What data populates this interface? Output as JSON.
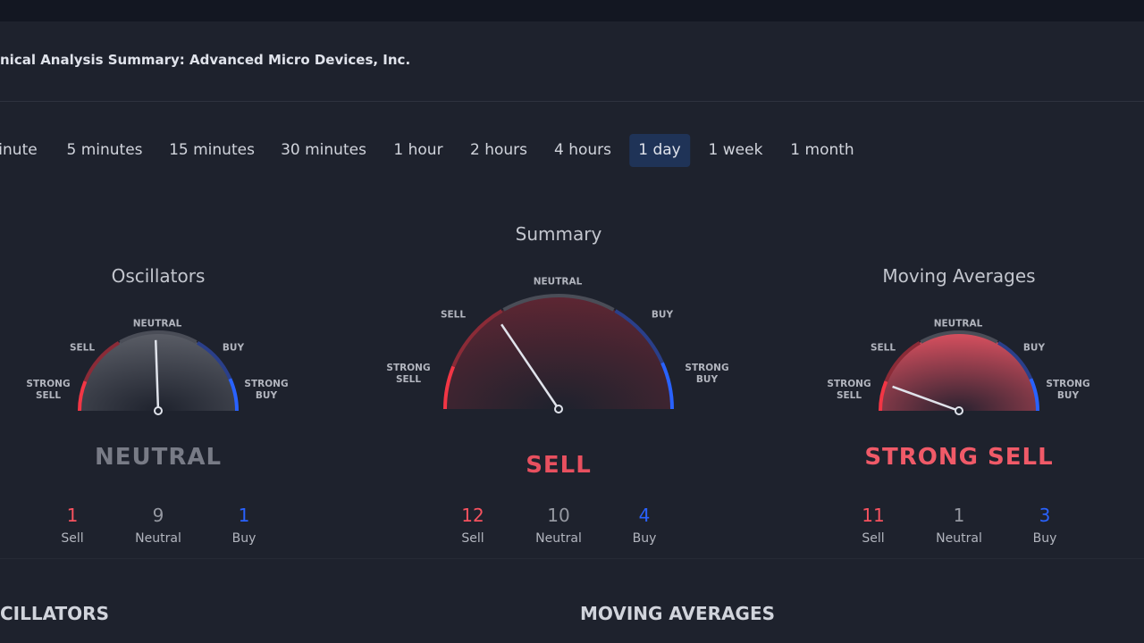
{
  "header": {
    "title": "nical Analysis Summary: Advanced Micro Devices, Inc."
  },
  "timeframes": [
    {
      "label": "inute",
      "active": false
    },
    {
      "label": "5 minutes",
      "active": false
    },
    {
      "label": "15 minutes",
      "active": false
    },
    {
      "label": "30 minutes",
      "active": false
    },
    {
      "label": "1 hour",
      "active": false
    },
    {
      "label": "2 hours",
      "active": false
    },
    {
      "label": "4 hours",
      "active": false
    },
    {
      "label": "1 day",
      "active": true
    },
    {
      "label": "1 week",
      "active": false
    },
    {
      "label": "1 month",
      "active": false
    }
  ],
  "gauges": [
    {
      "title": "Oscillators",
      "scale": [
        "STRONG SELL",
        "SELL",
        "NEUTRAL",
        "BUY",
        "STRONG BUY"
      ],
      "result": "NEUTRAL",
      "counts": [
        {
          "value": 1,
          "label": "Sell"
        },
        {
          "value": 9,
          "label": "Neutral"
        },
        {
          "value": 1,
          "label": "Buy"
        }
      ]
    },
    {
      "title": "Summary",
      "scale": [
        "STRONG SELL",
        "SELL",
        "NEUTRAL",
        "BUY",
        "STRONG BUY"
      ],
      "result": "SELL",
      "counts": [
        {
          "value": 12,
          "label": "Sell"
        },
        {
          "value": 10,
          "label": "Neutral"
        },
        {
          "value": 4,
          "label": "Buy"
        }
      ]
    },
    {
      "title": "Moving Averages",
      "scale": [
        "STRONG SELL",
        "SELL",
        "NEUTRAL",
        "BUY",
        "STRONG BUY"
      ],
      "result": "STRONG SELL",
      "counts": [
        {
          "value": 11,
          "label": "Sell"
        },
        {
          "value": 1,
          "label": "Neutral"
        },
        {
          "value": 3,
          "label": "Buy"
        }
      ]
    }
  ],
  "sections": [
    "CILLATORS",
    "MOVING AVERAGES"
  ]
}
